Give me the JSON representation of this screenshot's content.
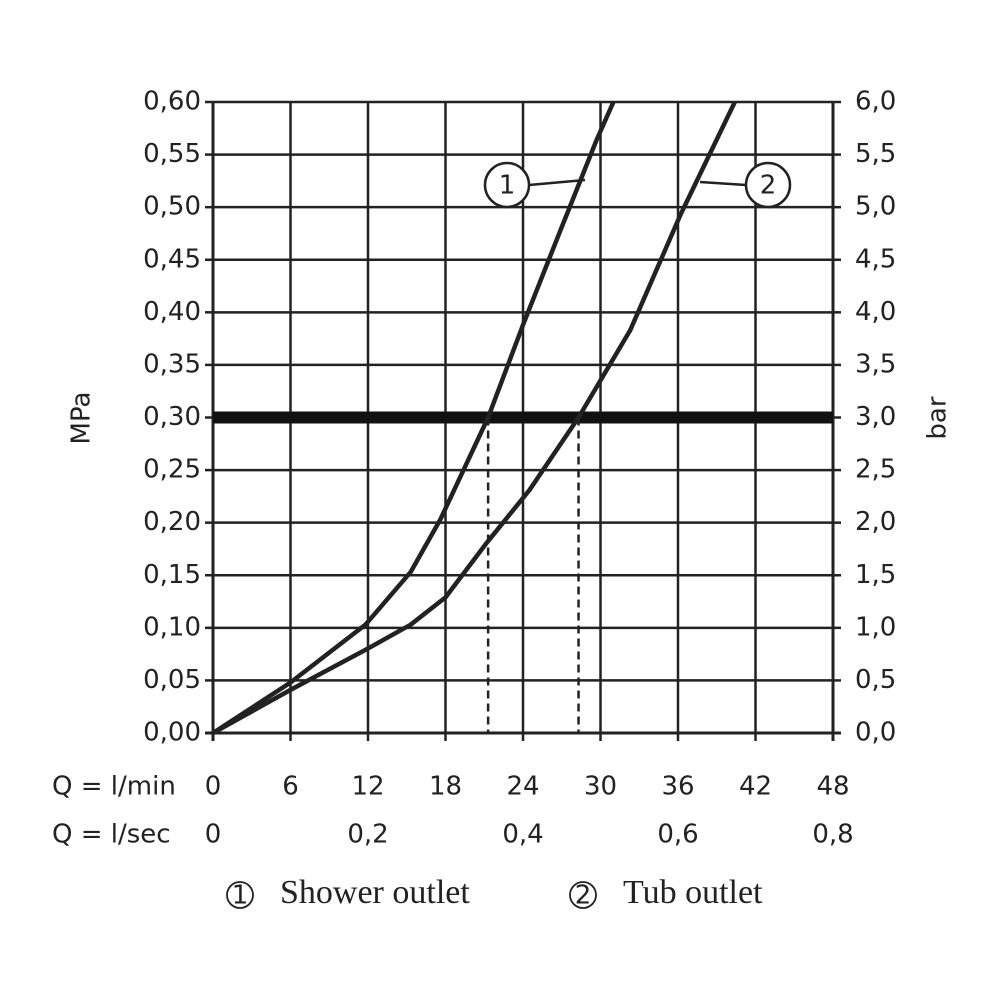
{
  "chart_data": {
    "type": "line",
    "y_label": "MPa",
    "y2_label": "bar",
    "x_label": "Q = l/min",
    "x2_label": "Q = l/sec",
    "xlim": [
      0,
      48
    ],
    "xticks": [
      0,
      6,
      12,
      18,
      24,
      30,
      36,
      42,
      48
    ],
    "x2lim": [
      0,
      0.8
    ],
    "x2ticks": [
      {
        "value": 0,
        "label": "0"
      },
      {
        "value": 0.2,
        "label": "0,2"
      },
      {
        "value": 0.4,
        "label": "0,4"
      },
      {
        "value": 0.6,
        "label": "0,6"
      },
      {
        "value": 0.8,
        "label": "0,8"
      }
    ],
    "ylim": [
      0,
      0.6
    ],
    "yticks": [
      {
        "value": 0,
        "label": "0,00"
      },
      {
        "value": 0.05,
        "label": "0,05"
      },
      {
        "value": 0.1,
        "label": "0,10"
      },
      {
        "value": 0.15,
        "label": "0,15"
      },
      {
        "value": 0.2,
        "label": "0,20"
      },
      {
        "value": 0.25,
        "label": "0,25"
      },
      {
        "value": 0.3,
        "label": "0,30"
      },
      {
        "value": 0.35,
        "label": "0,35"
      },
      {
        "value": 0.4,
        "label": "0,40"
      },
      {
        "value": 0.45,
        "label": "0,45"
      },
      {
        "value": 0.5,
        "label": "0,50"
      },
      {
        "value": 0.55,
        "label": "0,55"
      },
      {
        "value": 0.6,
        "label": "0,60"
      }
    ],
    "y2lim": [
      0,
      6
    ],
    "y2ticks": [
      {
        "value": 0,
        "label": "0,0"
      },
      {
        "value": 0.5,
        "label": "0,5"
      },
      {
        "value": 1,
        "label": "1,0"
      },
      {
        "value": 1.5,
        "label": "1,5"
      },
      {
        "value": 2,
        "label": "2,0"
      },
      {
        "value": 2.5,
        "label": "2,5"
      },
      {
        "value": 3,
        "label": "3,0"
      },
      {
        "value": 3.5,
        "label": "3,5"
      },
      {
        "value": 4,
        "label": "4,0"
      },
      {
        "value": 4.5,
        "label": "4,5"
      },
      {
        "value": 5,
        "label": "5,0"
      },
      {
        "value": 5.5,
        "label": "5,5"
      },
      {
        "value": 6,
        "label": "6,0"
      }
    ],
    "grid": true,
    "threshold": 0.3,
    "crossings": [
      21.3,
      28.3
    ],
    "series": [
      {
        "name": "Shower outlet",
        "label": "1",
        "color": "#222222",
        "x": [
          0,
          6,
          11.8,
          15.3,
          17.6,
          21.3,
          24,
          26.9,
          29.7,
          31
        ],
        "values": [
          0,
          0.048,
          0.103,
          0.153,
          0.203,
          0.3,
          0.388,
          0.478,
          0.564,
          0.6
        ]
      },
      {
        "name": "Tub outlet",
        "label": "2",
        "color": "#222222",
        "x": [
          0,
          6,
          11.8,
          15.3,
          18,
          21.2,
          24.5,
          28.3,
          32.3,
          36.2,
          40.4
        ],
        "values": [
          0,
          0.041,
          0.079,
          0.103,
          0.129,
          0.181,
          0.231,
          0.3,
          0.383,
          0.493,
          0.6
        ]
      }
    ]
  }
}
